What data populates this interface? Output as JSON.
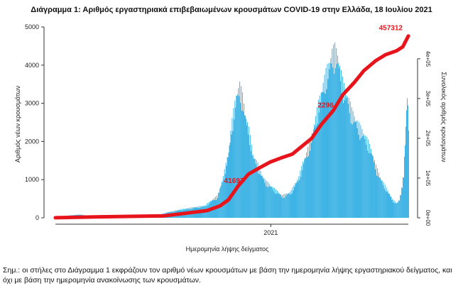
{
  "chart_data": {
    "type": "bar",
    "title": "Διάγραμμα 1: Αριθμός εργαστηριακά επιβεβαιωμένων κρουσμάτων COVID-19 στην Ελλάδα, 18 Ιουλίου 2021",
    "xlabel": "Ημερομηνία λήψης δείγματος",
    "ylabel": "Αριθμός νέων κρουσμάτων",
    "y2label": "Συνολικός αριθμός κρουσμάτων",
    "x_tick_labels": [
      "2021"
    ],
    "ylim": [
      0,
      5000
    ],
    "y_ticks": [
      "0",
      "1000",
      "2000",
      "3000",
      "4000",
      "5000"
    ],
    "y2lim": [
      0,
      480000
    ],
    "y2_ticks": [
      "0e+00",
      "1e+05",
      "2e+05",
      "3e+05",
      "4e+05"
    ],
    "grid": false,
    "series": [
      {
        "type": "bar",
        "color": "#1fa7e0",
        "x": [
          "2020-02-26",
          "2020-03-14",
          "2020-04-01",
          "2020-04-19",
          "2020-05-07",
          "2020-05-25",
          "2020-06-12",
          "2020-06-30",
          "2020-07-18",
          "2020-08-05",
          "2020-08-23",
          "2020-09-10",
          "2020-09-28",
          "2020-10-16",
          "2020-10-24",
          "2020-11-01",
          "2020-11-05",
          "2020-11-09",
          "2020-11-13",
          "2020-11-17",
          "2020-11-21",
          "2020-11-25",
          "2020-11-30",
          "2020-12-06",
          "2020-12-12",
          "2020-12-18",
          "2020-12-24",
          "2020-12-30",
          "2021-01-05",
          "2021-01-11",
          "2021-01-17",
          "2021-01-23",
          "2021-01-29",
          "2021-02-04",
          "2021-02-10",
          "2021-02-16",
          "2021-02-22",
          "2021-02-28",
          "2021-03-06",
          "2021-03-10",
          "2021-03-14",
          "2021-03-18",
          "2021-03-22",
          "2021-03-26",
          "2021-03-30",
          "2021-04-03",
          "2021-04-07",
          "2021-04-11",
          "2021-04-15",
          "2021-04-19",
          "2021-04-23",
          "2021-04-27",
          "2021-05-02",
          "2021-05-08",
          "2021-05-14",
          "2021-05-20",
          "2021-05-26",
          "2021-06-01",
          "2021-06-07",
          "2021-06-13",
          "2021-06-19",
          "2021-06-25",
          "2021-07-01",
          "2021-07-05",
          "2021-07-08",
          "2021-07-11",
          "2021-07-14",
          "2021-07-16",
          "2021-07-18"
        ],
        "values": [
          20,
          60,
          90,
          40,
          20,
          15,
          30,
          40,
          50,
          150,
          220,
          280,
          330,
          600,
          1100,
          1800,
          2500,
          3000,
          3400,
          3600,
          3300,
          2800,
          2400,
          1700,
          1500,
          1200,
          1000,
          900,
          800,
          700,
          600,
          650,
          700,
          900,
          1100,
          1500,
          1800,
          2200,
          2700,
          3100,
          3400,
          3700,
          4000,
          4200,
          4500,
          4600,
          4400,
          4000,
          3600,
          3400,
          3200,
          2900,
          2700,
          2500,
          2300,
          2100,
          1800,
          1400,
          1100,
          900,
          700,
          500,
          400,
          500,
          800,
          1200,
          2500,
          3400,
          2600
        ]
      },
      {
        "name": "Συνολικός αριθμός κρουσμάτων",
        "type": "line",
        "axis": "right",
        "color": "#e8141c",
        "x": [
          "2020-02-26",
          "2020-05-01",
          "2020-08-01",
          "2020-10-01",
          "2020-10-20",
          "2020-11-01",
          "2020-11-15",
          "2020-11-30",
          "2020-12-15",
          "2020-12-31",
          "2021-01-15",
          "2021-02-01",
          "2021-02-15",
          "2021-03-01",
          "2021-03-15",
          "2021-04-01",
          "2021-04-15",
          "2021-05-01",
          "2021-05-15",
          "2021-06-01",
          "2021-06-15",
          "2021-07-01",
          "2021-07-10",
          "2021-07-18"
        ],
        "values": [
          200,
          2500,
          5000,
          18000,
          30000,
          45000,
          80000,
          110000,
          125000,
          140000,
          150000,
          160000,
          180000,
          200000,
          235000,
          270000,
          310000,
          340000,
          370000,
          395000,
          410000,
          420000,
          430000,
          457312
        ]
      }
    ],
    "annotations": [
      {
        "text": "457312",
        "x": "2021-07-18"
      },
      {
        "text": "2296",
        "x": "2021-03-21"
      },
      {
        "text": "41697",
        "x": "2020-11-09"
      }
    ]
  },
  "footnote": "Σημ.: οι στήλες στο Διάγραμμα 1 εκφράζουν τον αριθμό νέων κρουσμάτων με βάση την ημερομηνία λήψης εργαστηριακού δείγματος, και όχι με βάση την ημερομηνία ανακοίνωσης των κρουσμάτων."
}
